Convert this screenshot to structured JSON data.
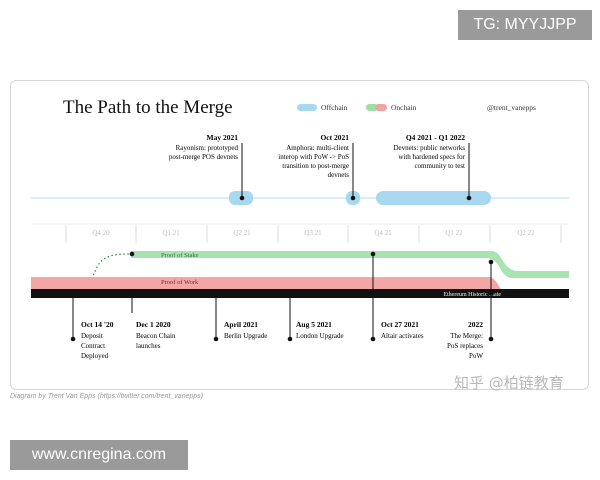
{
  "watermarks": {
    "top_right": "TG: MYYJJPP",
    "bottom_left": "www.cnregina.com",
    "chinese": "知乎 @柏链教育"
  },
  "diagram": {
    "title": "The Path to the Merge",
    "legend": {
      "offchain": "Offchain",
      "onchain": "Onchain",
      "handle": "@trent_vanepps",
      "offchain_color": "#a8d8f0",
      "onchain_color_green": "#9ee0a6",
      "onchain_color_red": "#f2a3a3"
    },
    "quarters": [
      "Q4 20",
      "Q1 21",
      "Q2 21",
      "Q3 21",
      "Q4 21",
      "Q1 22",
      "Q2 22"
    ],
    "offchain_events": [
      {
        "date": "May 2021",
        "lines": [
          "Rayonism: prototyped",
          "post-merge POS devnets"
        ]
      },
      {
        "date": "Oct 2021",
        "lines": [
          "Amphora: multi-client",
          "interop with PoW -> PoS",
          "transition to post-merge",
          "devnets"
        ]
      },
      {
        "date": "Q4 2021 - Q1 2022",
        "lines": [
          "Devnets: public networks",
          "with hardened specs for",
          "community to test"
        ]
      }
    ],
    "track_labels": {
      "pos": "Proof of Stake",
      "pow": "Proof of Work",
      "history": "Ethereum Historic State"
    },
    "onchain_events": [
      {
        "date": "Oct 14 '20",
        "lines": [
          "Deposit",
          "Contract",
          "Deployed"
        ]
      },
      {
        "date": "Dec 1 2020",
        "lines": [
          "Beacon Chain",
          "launches"
        ]
      },
      {
        "date": "April 2021",
        "lines": [
          "Berlin Upgrade"
        ]
      },
      {
        "date": "Aug 5 2021",
        "lines": [
          "London Upgrade"
        ]
      },
      {
        "date": "Oct 27 2021",
        "lines": [
          "Altair activates"
        ]
      },
      {
        "date": "2022",
        "lines": [
          "The Merge:",
          "PoS replaces",
          "PoW"
        ]
      }
    ],
    "caption": "Diagram by Trent Van Epps (https://twitter.com/trent_vanepps)"
  }
}
